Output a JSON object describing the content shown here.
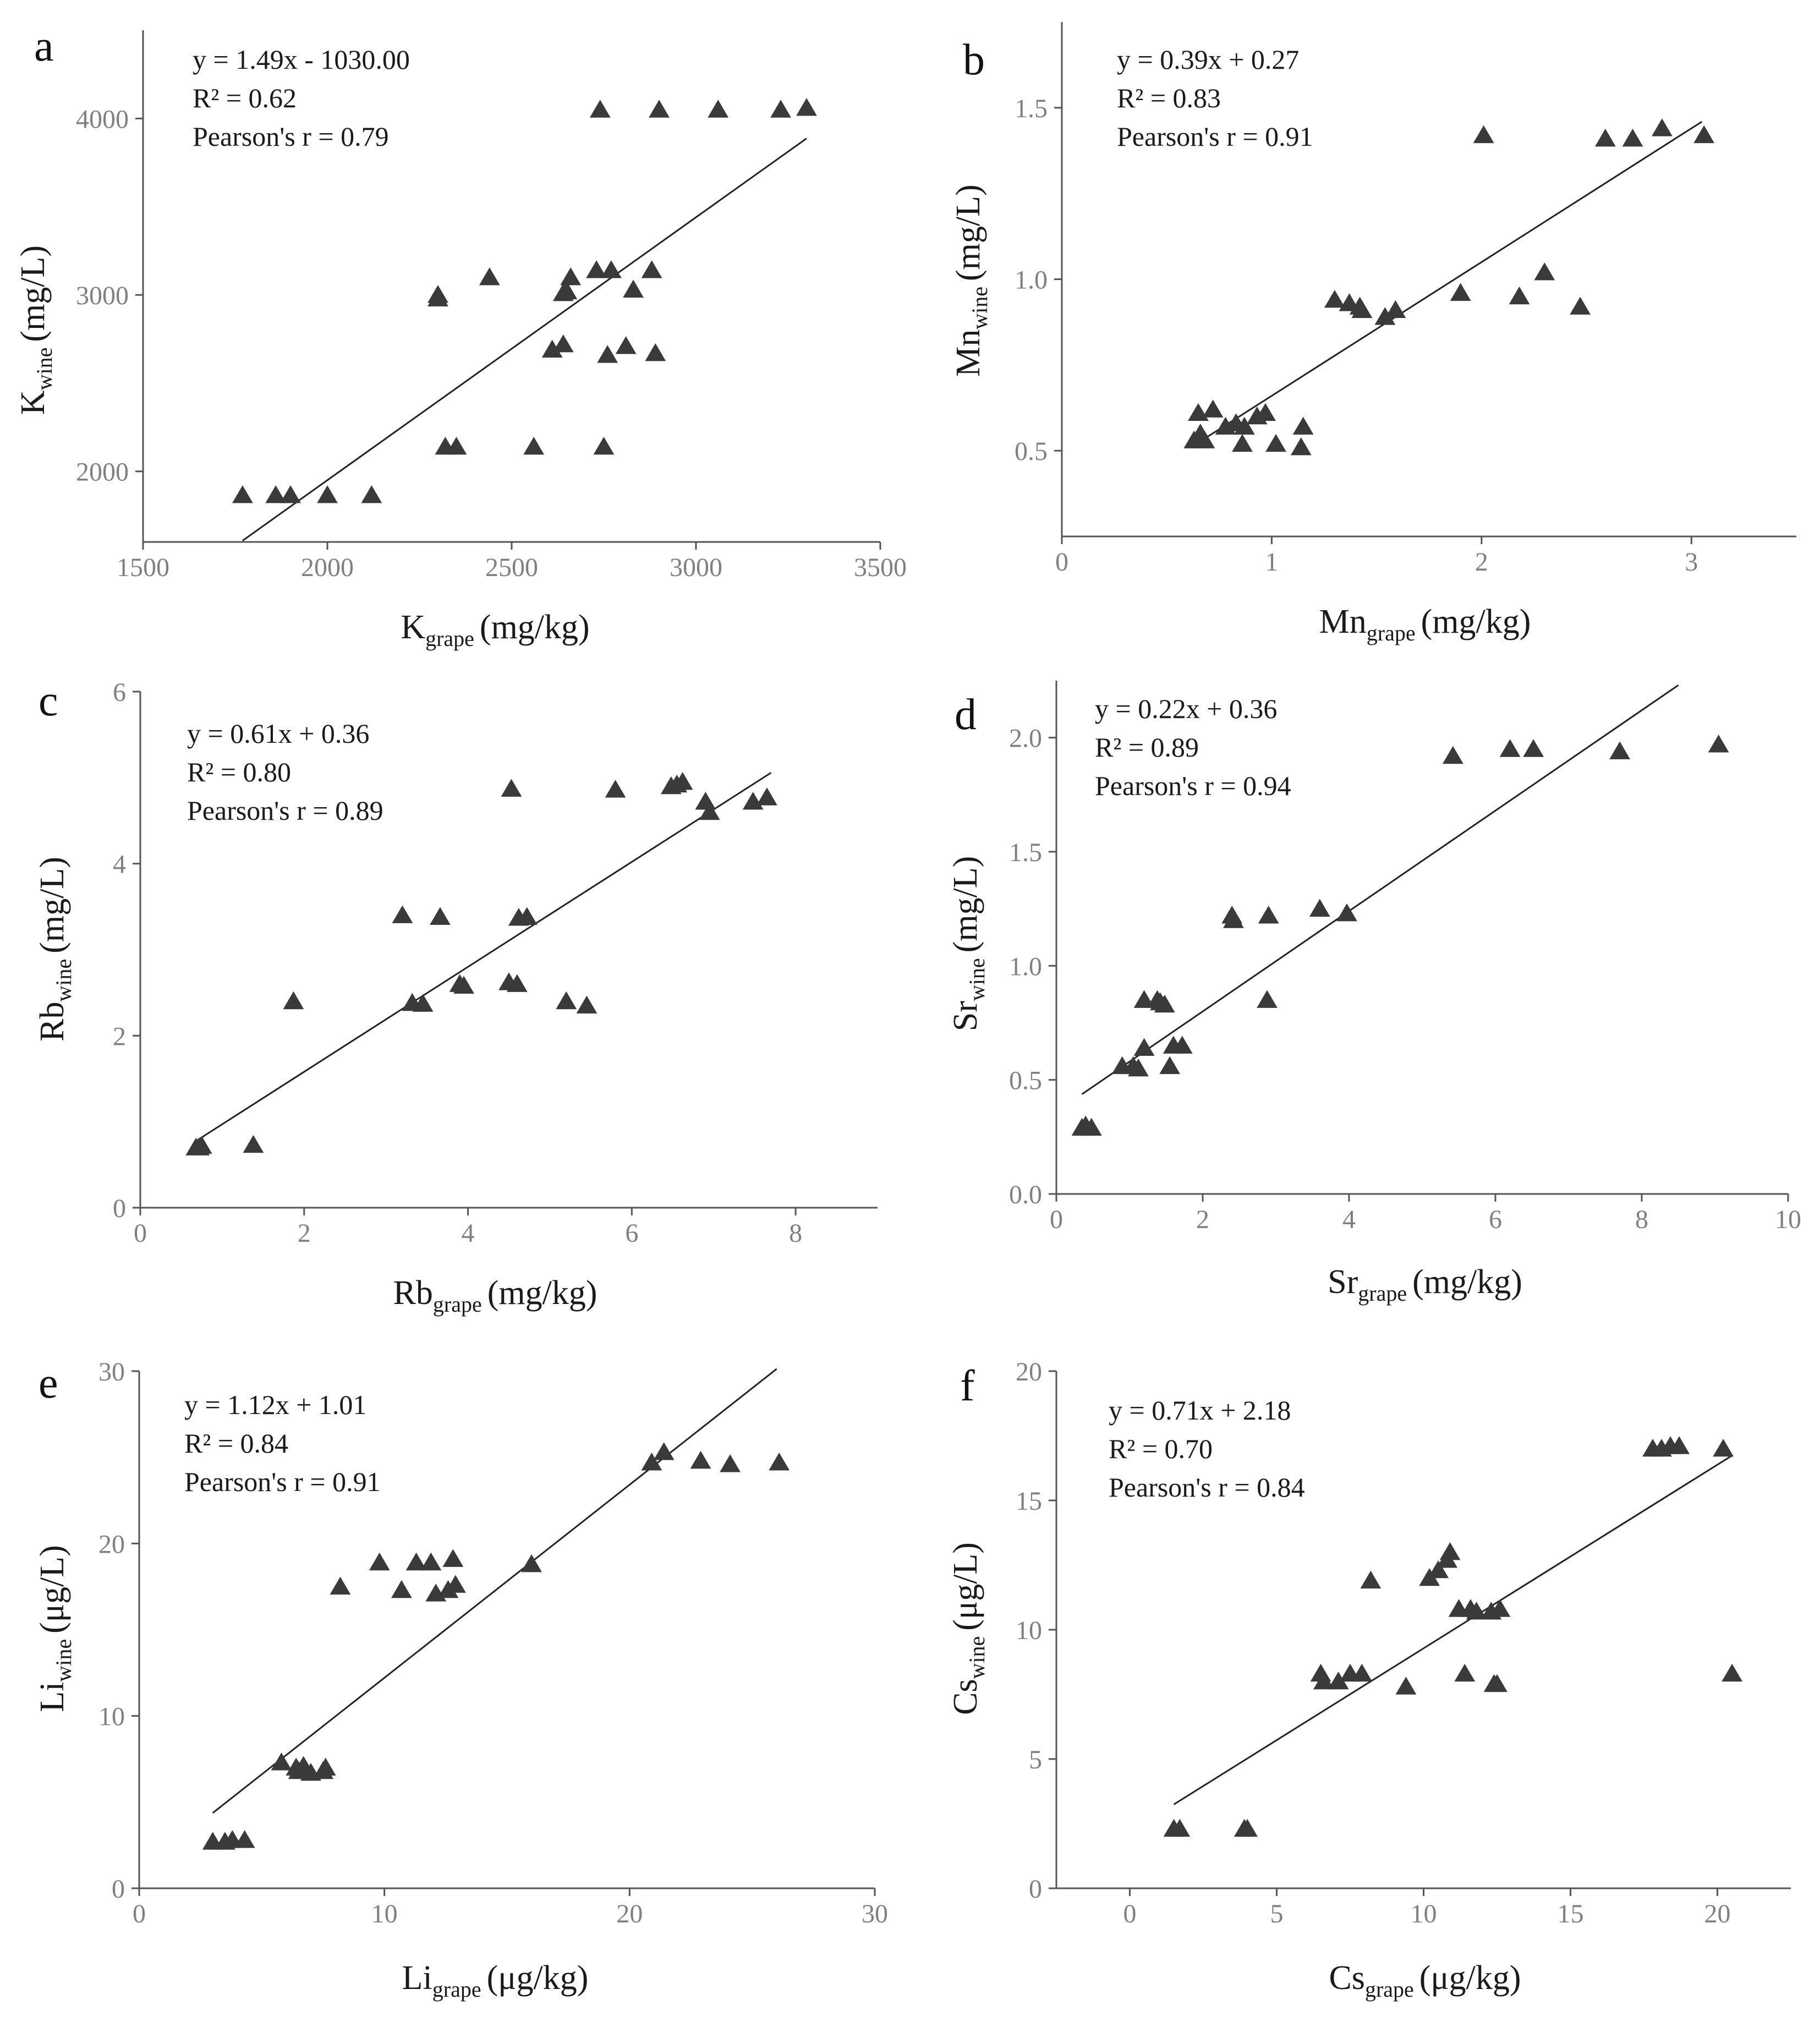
{
  "chart_data": [
    {
      "type": "scatter",
      "panel": "a",
      "element": "K",
      "xlabel": {
        "main": "K",
        "sub": "grape",
        "unit": "(mg/kg)"
      },
      "ylabel": {
        "main": "K",
        "sub": "wine",
        "unit": "(mg/L)"
      },
      "xlim": [
        1500,
        3500
      ],
      "ylim": [
        1600,
        4500
      ],
      "xticks": [
        1500,
        2000,
        2500,
        3000,
        3500
      ],
      "yticks": [
        2000,
        3000,
        4000
      ],
      "annotations": [
        "y = 1.49x - 1030.00",
        "R² = 0.62",
        "Pearson's r = 0.79"
      ],
      "fit": {
        "slope": 1.49,
        "intercept": -1030.0,
        "x_range": [
          1770,
          3300
        ]
      },
      "points": [
        [
          1770,
          1865
        ],
        [
          1860,
          1865
        ],
        [
          1900,
          1865
        ],
        [
          2000,
          1865
        ],
        [
          2120,
          1865
        ],
        [
          2300,
          2980
        ],
        [
          2300,
          3000
        ],
        [
          2320,
          2140
        ],
        [
          2350,
          2140
        ],
        [
          2440,
          3100
        ],
        [
          2560,
          2140
        ],
        [
          2610,
          2690
        ],
        [
          2640,
          2720
        ],
        [
          2640,
          3010
        ],
        [
          2650,
          3020
        ],
        [
          2660,
          3100
        ],
        [
          2730,
          3140
        ],
        [
          2740,
          4050
        ],
        [
          2750,
          2140
        ],
        [
          2760,
          2660
        ],
        [
          2770,
          3140
        ],
        [
          2810,
          2710
        ],
        [
          2830,
          3030
        ],
        [
          2880,
          3140
        ],
        [
          2890,
          2670
        ],
        [
          2900,
          4050
        ],
        [
          3060,
          4050
        ],
        [
          3230,
          4050
        ],
        [
          3300,
          4060
        ]
      ]
    },
    {
      "type": "scatter",
      "panel": "b",
      "element": "Mn",
      "xlabel": {
        "main": "Mn",
        "sub": "grape",
        "unit": "(mg/kg)"
      },
      "ylabel": {
        "main": "Mn",
        "sub": "wine",
        "unit": "(mg/L)"
      },
      "xlim": [
        0,
        3.5
      ],
      "ylim": [
        0.25,
        1.75
      ],
      "xticks": [
        0,
        1,
        2,
        3
      ],
      "yticks": [
        0.5,
        1.0,
        1.5
      ],
      "ytick_labels": [
        "0.5",
        "1.0",
        "1.5"
      ],
      "annotations": [
        "y = 0.39x + 0.27",
        "R² = 0.83",
        "Pearson's r = 0.91"
      ],
      "fit": {
        "slope": 0.39,
        "intercept": 0.27,
        "x_range": [
          0.65,
          3.05
        ]
      },
      "points": [
        [
          0.63,
          0.53
        ],
        [
          0.65,
          0.61
        ],
        [
          0.66,
          0.55
        ],
        [
          0.68,
          0.53
        ],
        [
          0.72,
          0.62
        ],
        [
          0.78,
          0.57
        ],
        [
          0.83,
          0.58
        ],
        [
          0.86,
          0.52
        ],
        [
          0.87,
          0.57
        ],
        [
          0.93,
          0.6
        ],
        [
          0.97,
          0.61
        ],
        [
          1.02,
          0.52
        ],
        [
          1.14,
          0.51
        ],
        [
          1.15,
          0.57
        ],
        [
          1.3,
          0.94
        ],
        [
          1.37,
          0.93
        ],
        [
          1.42,
          0.92
        ],
        [
          1.43,
          0.91
        ],
        [
          1.54,
          0.89
        ],
        [
          1.59,
          0.91
        ],
        [
          1.9,
          0.96
        ],
        [
          2.01,
          1.42
        ],
        [
          2.18,
          0.95
        ],
        [
          2.3,
          1.02
        ],
        [
          2.47,
          0.92
        ],
        [
          2.59,
          1.41
        ],
        [
          2.72,
          1.41
        ],
        [
          2.86,
          1.44
        ],
        [
          3.06,
          1.42
        ]
      ]
    },
    {
      "type": "scatter",
      "panel": "c",
      "element": "Rb",
      "xlabel": {
        "main": "Rb",
        "sub": "grape",
        "unit": "(mg/kg)"
      },
      "ylabel": {
        "main": "Rb",
        "sub": "wine",
        "unit": "(mg/L)"
      },
      "xlim": [
        0,
        9
      ],
      "ylim": [
        0,
        6
      ],
      "xticks": [
        0,
        2,
        4,
        6,
        8
      ],
      "yticks": [
        0,
        2,
        4,
        6
      ],
      "annotations": [
        "y = 0.61x + 0.36",
        "R² = 0.80",
        "Pearson's r = 0.89"
      ],
      "fit": {
        "slope": 0.61,
        "intercept": 0.36,
        "x_range": [
          0.7,
          7.7
        ]
      },
      "points": [
        [
          0.68,
          0.7
        ],
        [
          0.72,
          0.7
        ],
        [
          0.75,
          0.72
        ],
        [
          1.38,
          0.73
        ],
        [
          1.87,
          2.4
        ],
        [
          3.2,
          3.4
        ],
        [
          3.32,
          2.38
        ],
        [
          3.45,
          2.37
        ],
        [
          3.66,
          3.38
        ],
        [
          3.9,
          2.6
        ],
        [
          3.95,
          2.58
        ],
        [
          4.5,
          2.62
        ],
        [
          4.53,
          4.87
        ],
        [
          4.6,
          2.6
        ],
        [
          4.62,
          3.37
        ],
        [
          4.72,
          3.38
        ],
        [
          5.2,
          2.4
        ],
        [
          5.45,
          2.35
        ],
        [
          5.8,
          4.86
        ],
        [
          6.48,
          4.9
        ],
        [
          6.55,
          4.92
        ],
        [
          6.62,
          4.95
        ],
        [
          6.9,
          4.72
        ],
        [
          6.95,
          4.6
        ],
        [
          7.48,
          4.72
        ],
        [
          7.65,
          4.77
        ]
      ]
    },
    {
      "type": "scatter",
      "panel": "d",
      "element": "Sr",
      "xlabel": {
        "main": "Sr",
        "sub": "grape",
        "unit": "(mg/kg)"
      },
      "ylabel": {
        "main": "Sr",
        "sub": "wine",
        "unit": "(mg/L)"
      },
      "xlim": [
        0,
        10
      ],
      "ylim": [
        0,
        2.25
      ],
      "xticks": [
        0,
        2,
        4,
        6,
        8,
        10
      ],
      "yticks": [
        0,
        0.5,
        1.0,
        1.5,
        2.0
      ],
      "ytick_labels": [
        "0.0",
        "0.5",
        "1.0",
        "1.5",
        "2.0"
      ],
      "annotations": [
        "y = 0.22x + 0.36",
        "R² = 0.89",
        "Pearson's r = 0.94"
      ],
      "fit": {
        "slope": 0.22,
        "intercept": 0.36,
        "x_range": [
          0.35,
          8.5
        ]
      },
      "points": [
        [
          0.35,
          0.29
        ],
        [
          0.4,
          0.3
        ],
        [
          0.48,
          0.29
        ],
        [
          0.9,
          0.56
        ],
        [
          1.05,
          0.56
        ],
        [
          1.12,
          0.55
        ],
        [
          1.2,
          0.64
        ],
        [
          1.2,
          0.85
        ],
        [
          1.38,
          0.85
        ],
        [
          1.42,
          0.84
        ],
        [
          1.48,
          0.83
        ],
        [
          1.55,
          0.56
        ],
        [
          1.6,
          0.65
        ],
        [
          1.72,
          0.65
        ],
        [
          2.4,
          1.22
        ],
        [
          2.42,
          1.2
        ],
        [
          2.88,
          0.85
        ],
        [
          2.9,
          1.22
        ],
        [
          3.6,
          1.25
        ],
        [
          3.97,
          1.23
        ],
        [
          5.42,
          1.92
        ],
        [
          6.2,
          1.95
        ],
        [
          6.52,
          1.95
        ],
        [
          7.7,
          1.94
        ],
        [
          9.05,
          1.97
        ]
      ]
    },
    {
      "type": "scatter",
      "panel": "e",
      "element": "Li",
      "xlabel": {
        "main": "Li",
        "sub": "grape",
        "unit": "(μg/kg)"
      },
      "ylabel": {
        "main": "Li",
        "sub": "wine",
        "unit": "(μg/L)"
      },
      "xlim": [
        0,
        30
      ],
      "ylim": [
        0,
        30
      ],
      "xticks": [
        0,
        10,
        20,
        30
      ],
      "yticks": [
        0,
        10,
        20,
        30
      ],
      "annotations": [
        "y = 1.12x + 1.01",
        "R² = 0.84",
        "Pearson's r = 0.91"
      ],
      "fit": {
        "slope": 1.12,
        "intercept": 1.01,
        "x_range": [
          3.0,
          26.0
        ]
      },
      "points": [
        [
          3.0,
          2.7
        ],
        [
          3.5,
          2.7
        ],
        [
          3.8,
          2.8
        ],
        [
          4.3,
          2.8
        ],
        [
          5.8,
          7.3
        ],
        [
          6.4,
          7.0
        ],
        [
          6.5,
          6.8
        ],
        [
          6.7,
          7.1
        ],
        [
          7.0,
          6.7
        ],
        [
          7.5,
          6.8
        ],
        [
          7.6,
          7.0
        ],
        [
          8.2,
          17.5
        ],
        [
          9.8,
          18.9
        ],
        [
          10.7,
          17.3
        ],
        [
          11.3,
          18.9
        ],
        [
          11.9,
          18.9
        ],
        [
          12.1,
          17.1
        ],
        [
          12.6,
          17.3
        ],
        [
          12.8,
          19.1
        ],
        [
          12.9,
          17.6
        ],
        [
          16.0,
          18.8
        ],
        [
          20.9,
          24.7
        ],
        [
          21.4,
          25.3
        ],
        [
          22.9,
          24.8
        ],
        [
          24.1,
          24.6
        ],
        [
          26.1,
          24.7
        ]
      ]
    },
    {
      "type": "scatter",
      "panel": "f",
      "element": "Cs",
      "xlabel": {
        "main": "Cs",
        "sub": "grape",
        "unit": "(μg/kg)"
      },
      "ylabel": {
        "main": "Cs",
        "sub": "wine",
        "unit": "(μg/L)"
      },
      "xlim": [
        -2.5,
        22.5
      ],
      "ylim": [
        0,
        20
      ],
      "xticks": [
        0,
        5,
        10,
        15,
        20
      ],
      "yticks": [
        0,
        5,
        10,
        15,
        20
      ],
      "annotations": [
        "y = 0.71x + 2.18",
        "R² = 0.70",
        "Pearson's r = 0.84"
      ],
      "fit": {
        "slope": 0.71,
        "intercept": 2.18,
        "x_range": [
          1.5,
          20.5
        ]
      },
      "points": [
        [
          1.5,
          2.3
        ],
        [
          1.7,
          2.3
        ],
        [
          3.9,
          2.3
        ],
        [
          4.0,
          2.3
        ],
        [
          6.5,
          8.3
        ],
        [
          6.6,
          8.0
        ],
        [
          7.1,
          8.0
        ],
        [
          7.5,
          8.3
        ],
        [
          7.9,
          8.3
        ],
        [
          8.2,
          11.9
        ],
        [
          9.4,
          7.8
        ],
        [
          10.2,
          12.0
        ],
        [
          10.5,
          12.3
        ],
        [
          10.8,
          12.7
        ],
        [
          10.9,
          13.0
        ],
        [
          11.2,
          10.8
        ],
        [
          11.4,
          8.3
        ],
        [
          11.6,
          10.8
        ],
        [
          11.8,
          10.7
        ],
        [
          12.3,
          10.7
        ],
        [
          12.4,
          7.9
        ],
        [
          12.6,
          10.8
        ],
        [
          12.5,
          7.9
        ],
        [
          17.8,
          17.0
        ],
        [
          18.1,
          17.0
        ],
        [
          18.4,
          17.1
        ],
        [
          18.7,
          17.1
        ],
        [
          20.2,
          17.0
        ],
        [
          20.5,
          8.3
        ]
      ]
    }
  ]
}
